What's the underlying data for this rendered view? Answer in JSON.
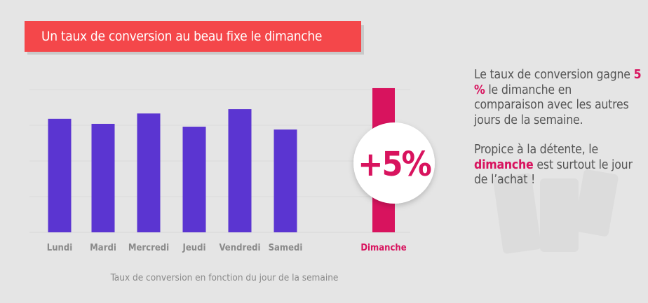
{
  "title": "Un taux de conversion au beau fixe le dimanche",
  "chart_data": {
    "type": "bar",
    "title": "Un taux de conversion au beau fixe le dimanche",
    "categories": [
      "Lundi",
      "Mardi",
      "Mercredi",
      "Jeudi",
      "Vendredi",
      "Samedi",
      "Dimanche"
    ],
    "values": [
      3.18,
      3.04,
      3.33,
      2.96,
      3.45,
      2.88,
      4.04
    ],
    "ylim": [
      0,
      4
    ],
    "grid": true,
    "xlabel": "Taux de conversion en fonction du jour de la semaine",
    "ylabel": "",
    "highlight": {
      "category": "Dimanche",
      "label": "+5%"
    },
    "colors": {
      "bar": "#5b35d1",
      "highlight": "#d8135e",
      "banner": "#f4474a"
    }
  },
  "side_text": {
    "p1_before": "Le taux de conversion gagne ",
    "p1_highlight": "5 %",
    "p1_after": " le dimanche en comparaison avec les autres jours de la semaine.",
    "p2_before": "Propice à la détente, le ",
    "p2_highlight": "dimanche",
    "p2_after": " est surtout le jour de l’achat !"
  }
}
